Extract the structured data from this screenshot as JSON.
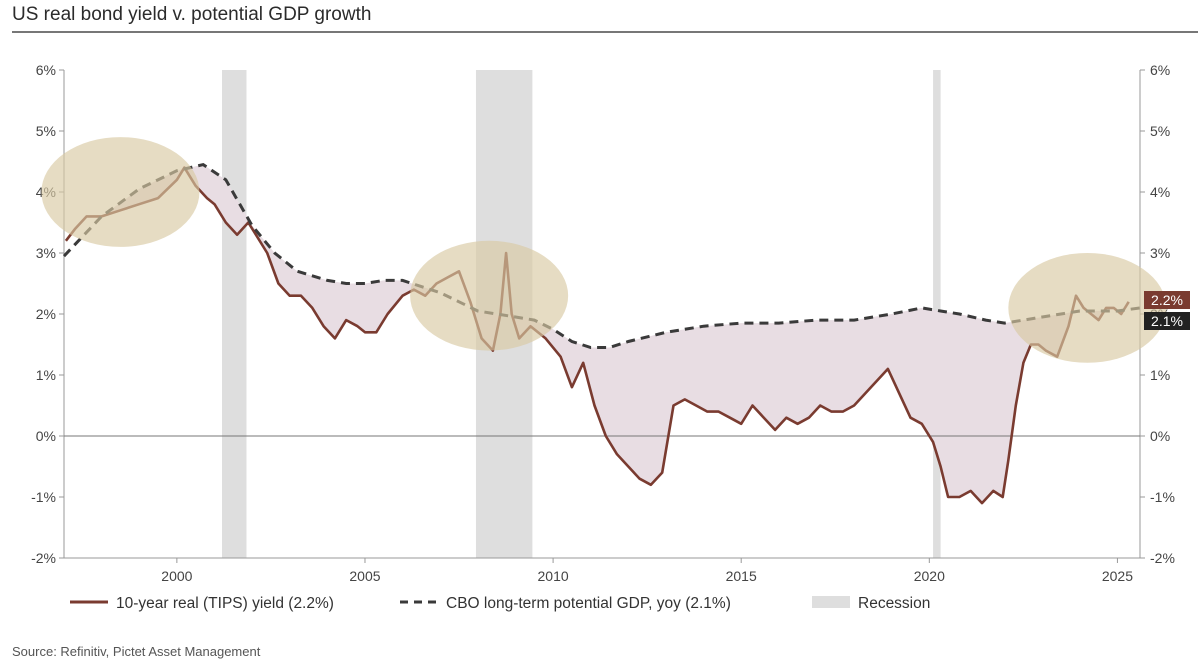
{
  "title": "US real bond yield v. potential GDP growth",
  "source": "Source: Refinitiv, Pictet Asset Management",
  "colors": {
    "yield": "#7a3b30",
    "gdp": "#3a3a3a",
    "recession": "#dedede",
    "gap_fill": "#e8dde3",
    "ellipse": "#d9c9a3"
  },
  "chart_data": {
    "type": "line",
    "title": "US real bond yield v. potential GDP growth",
    "xlim": [
      1997,
      2025.6
    ],
    "ylim": [
      -2,
      6
    ],
    "x_ticks": [
      2000,
      2005,
      2010,
      2015,
      2020,
      2025
    ],
    "y_ticks": [
      -2,
      -1,
      0,
      1,
      2,
      3,
      4,
      5,
      6
    ],
    "y_tick_labels": [
      "-2%",
      "-1%",
      "0%",
      "1%",
      "2%",
      "3%",
      "4%",
      "5%",
      "6%"
    ],
    "recessions": [
      [
        2001.2,
        2001.85
      ],
      [
        2007.95,
        2009.45
      ],
      [
        2020.1,
        2020.3
      ]
    ],
    "highlight_ellipses": [
      {
        "cx": 1998.5,
        "cy": 4.0,
        "rx": 2.1,
        "ry": 0.9
      },
      {
        "cx": 2008.3,
        "cy": 2.3,
        "rx": 2.1,
        "ry": 0.9
      },
      {
        "cx": 2024.2,
        "cy": 2.1,
        "rx": 2.1,
        "ry": 0.9
      }
    ],
    "series": [
      {
        "name": "10-year real (TIPS) yield (2.2%)",
        "style": "solid",
        "end_label": "2.2%",
        "x": [
          1997.05,
          1997.3,
          1997.6,
          1998,
          1998.5,
          1999,
          1999.5,
          2000,
          2000.2,
          2000.5,
          2000.8,
          2001,
          2001.3,
          2001.6,
          2001.9,
          2002.1,
          2002.4,
          2002.7,
          2003,
          2003.3,
          2003.6,
          2003.9,
          2004.2,
          2004.5,
          2004.8,
          2005,
          2005.3,
          2005.6,
          2006,
          2006.3,
          2006.6,
          2006.9,
          2007.2,
          2007.5,
          2007.8,
          2008.1,
          2008.4,
          2008.6,
          2008.75,
          2008.9,
          2009.1,
          2009.4,
          2009.8,
          2010.2,
          2010.5,
          2010.8,
          2011.1,
          2011.4,
          2011.7,
          2012,
          2012.3,
          2012.6,
          2012.9,
          2013.2,
          2013.5,
          2013.8,
          2014.1,
          2014.4,
          2014.7,
          2015,
          2015.3,
          2015.6,
          2015.9,
          2016.2,
          2016.5,
          2016.8,
          2017.1,
          2017.4,
          2017.7,
          2018,
          2018.3,
          2018.6,
          2018.9,
          2019.2,
          2019.5,
          2019.8,
          2020.1,
          2020.3,
          2020.5,
          2020.8,
          2021.1,
          2021.4,
          2021.7,
          2021.95,
          2022.1,
          2022.3,
          2022.5,
          2022.7,
          2022.9,
          2023.1,
          2023.4,
          2023.7,
          2023.9,
          2024.1,
          2024.3,
          2024.5,
          2024.7,
          2024.9,
          2025.1,
          2025.3
        ],
        "y": [
          3.2,
          3.4,
          3.6,
          3.6,
          3.7,
          3.8,
          3.9,
          4.2,
          4.4,
          4.1,
          3.9,
          3.8,
          3.5,
          3.3,
          3.5,
          3.3,
          3.0,
          2.5,
          2.3,
          2.3,
          2.1,
          1.8,
          1.6,
          1.9,
          1.8,
          1.7,
          1.7,
          2.0,
          2.3,
          2.4,
          2.3,
          2.5,
          2.6,
          2.7,
          2.2,
          1.6,
          1.4,
          2.0,
          3.0,
          2.0,
          1.6,
          1.8,
          1.6,
          1.3,
          0.8,
          1.2,
          0.5,
          0.0,
          -0.3,
          -0.5,
          -0.7,
          -0.8,
          -0.6,
          0.5,
          0.6,
          0.5,
          0.4,
          0.4,
          0.3,
          0.2,
          0.5,
          0.3,
          0.1,
          0.3,
          0.2,
          0.3,
          0.5,
          0.4,
          0.4,
          0.5,
          0.7,
          0.9,
          1.1,
          0.7,
          0.3,
          0.2,
          -0.1,
          -0.5,
          -1.0,
          -1.0,
          -0.9,
          -1.1,
          -0.9,
          -1.0,
          -0.4,
          0.5,
          1.2,
          1.5,
          1.5,
          1.4,
          1.3,
          1.8,
          2.3,
          2.1,
          2.0,
          1.9,
          2.1,
          2.1,
          2.0,
          2.2
        ]
      },
      {
        "name": "CBO long-term potential GDP, yoy (2.1%)",
        "style": "dashed",
        "end_label": "2.1%",
        "x": [
          1997,
          1998,
          1999,
          2000,
          2000.7,
          2001.3,
          2002,
          2002.6,
          2003.2,
          2004,
          2004.5,
          2005,
          2005.5,
          2006,
          2006.5,
          2007,
          2007.5,
          2008,
          2009,
          2009.5,
          2010,
          2010.5,
          2011,
          2011.5,
          2012,
          2013,
          2014,
          2015,
          2016,
          2017,
          2018,
          2019,
          2019.8,
          2020.3,
          2020.8,
          2021.5,
          2022,
          2022.5,
          2023,
          2024,
          2025,
          2025.6
        ],
        "y": [
          2.95,
          3.6,
          4.05,
          4.35,
          4.45,
          4.2,
          3.45,
          3.0,
          2.7,
          2.55,
          2.5,
          2.5,
          2.55,
          2.55,
          2.45,
          2.35,
          2.2,
          2.05,
          1.95,
          1.9,
          1.75,
          1.55,
          1.45,
          1.45,
          1.55,
          1.7,
          1.8,
          1.85,
          1.85,
          1.9,
          1.9,
          2.0,
          2.1,
          2.05,
          2.0,
          1.9,
          1.85,
          1.9,
          1.95,
          2.05,
          2.05,
          2.1
        ]
      }
    ],
    "legend": [
      {
        "label": "10-year real (TIPS) yield (2.2%)",
        "type": "solid-line"
      },
      {
        "label": "CBO long-term potential GDP, yoy (2.1%)",
        "type": "dashed-line"
      },
      {
        "label": "Recession",
        "type": "swatch"
      }
    ],
    "legend_position": "bottom"
  }
}
